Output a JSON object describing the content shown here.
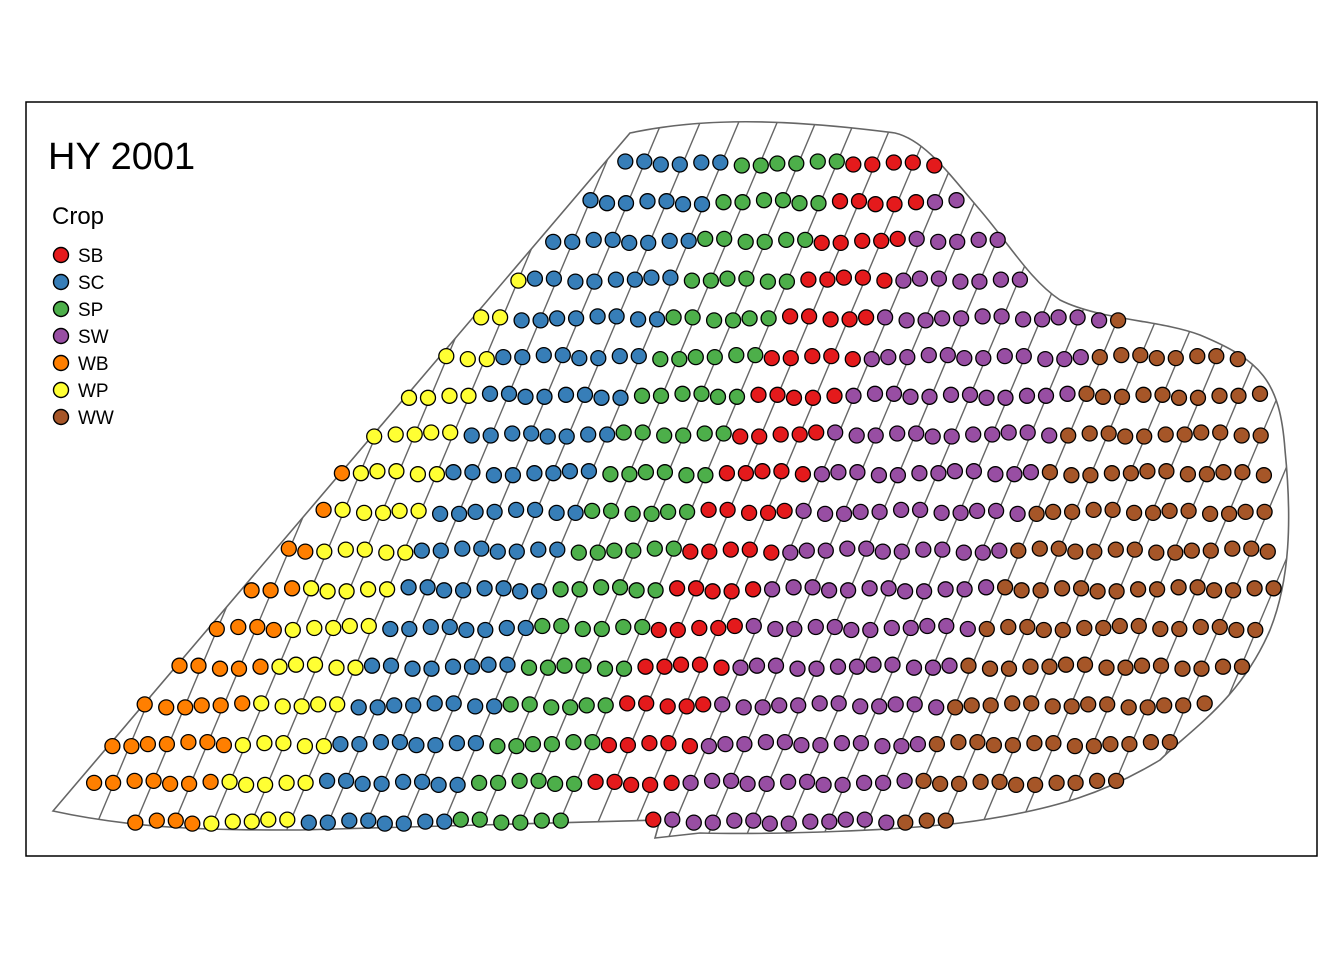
{
  "map": {
    "title": "HY 2001"
  },
  "legend": {
    "title": "Crop",
    "items": [
      {
        "code": "SB",
        "color": "#E41A1C"
      },
      {
        "code": "SC",
        "color": "#377EB8"
      },
      {
        "code": "SP",
        "color": "#4DAF4A"
      },
      {
        "code": "SW",
        "color": "#984EA3"
      },
      {
        "code": "WB",
        "color": "#FF7F00"
      },
      {
        "code": "WP",
        "color": "#FFFF33"
      },
      {
        "code": "WW",
        "color": "#A65628"
      }
    ]
  },
  "colors": {
    "field_boundary": "#666666",
    "point_outline": "#000000",
    "frame": "#000000"
  }
}
